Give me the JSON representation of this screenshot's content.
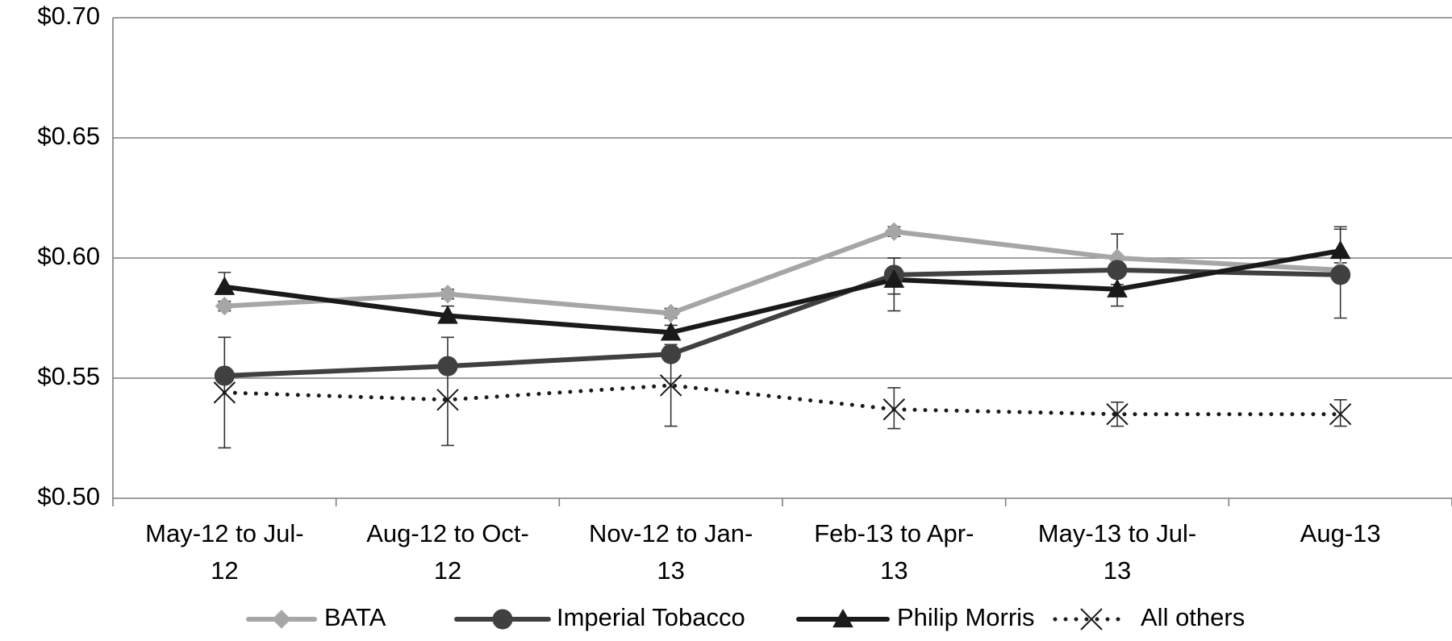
{
  "chart_data": {
    "type": "line",
    "title": "",
    "xlabel": "",
    "ylabel": "",
    "categories": [
      [
        "May-12 to Jul-",
        "12"
      ],
      [
        "Aug-12 to Oct-",
        "12"
      ],
      [
        "Nov-12 to Jan-",
        "13"
      ],
      [
        "Feb-13 to Apr-",
        "13"
      ],
      [
        "May-13 to Jul-",
        "13"
      ],
      [
        "Aug-13"
      ]
    ],
    "ylim": [
      0.5,
      0.7
    ],
    "yticks": [
      {
        "value": 0.5,
        "label": "$0.50"
      },
      {
        "value": 0.55,
        "label": "$0.55"
      },
      {
        "value": 0.6,
        "label": "$0.60"
      },
      {
        "value": 0.65,
        "label": "$0.65"
      },
      {
        "value": 0.7,
        "label": "$0.70"
      }
    ],
    "grid": "horizontal",
    "legend_position": "bottom",
    "series": [
      {
        "name": "BATA",
        "marker": "diamond",
        "line": "solid",
        "color": "#a6a6a6",
        "values": [
          0.58,
          0.585,
          0.577,
          0.611,
          0.6,
          0.595
        ],
        "err_low": [
          0.578,
          0.583,
          0.575,
          0.609,
          0.594,
          0.592
        ],
        "err_high": [
          0.582,
          0.587,
          0.579,
          0.613,
          0.61,
          0.598
        ]
      },
      {
        "name": "Imperial Tobacco",
        "marker": "circle",
        "line": "solid",
        "color": "#404040",
        "values": [
          0.551,
          0.555,
          0.56,
          0.593,
          0.595,
          0.593
        ],
        "err_low": [
          0.548,
          0.552,
          0.557,
          0.585,
          0.589,
          0.575
        ],
        "err_high": [
          0.554,
          0.567,
          0.563,
          0.6,
          0.601,
          0.612
        ]
      },
      {
        "name": "Philip Morris",
        "marker": "triangle",
        "line": "solid",
        "color": "#1a1a1a",
        "values": [
          0.588,
          0.576,
          0.569,
          0.591,
          0.587,
          0.603
        ],
        "err_low": [
          0.585,
          0.573,
          0.566,
          0.578,
          0.58,
          0.6
        ],
        "err_high": [
          0.594,
          0.58,
          0.572,
          0.6,
          0.592,
          0.613
        ]
      },
      {
        "name": "All others",
        "marker": "x",
        "line": "dotted",
        "color": "#1a1a1a",
        "values": [
          0.544,
          0.541,
          0.547,
          0.537,
          0.535,
          0.535
        ],
        "err_low": [
          0.521,
          0.522,
          0.53,
          0.529,
          0.53,
          0.53
        ],
        "err_high": [
          0.567,
          0.558,
          0.564,
          0.546,
          0.54,
          0.541
        ]
      }
    ]
  }
}
